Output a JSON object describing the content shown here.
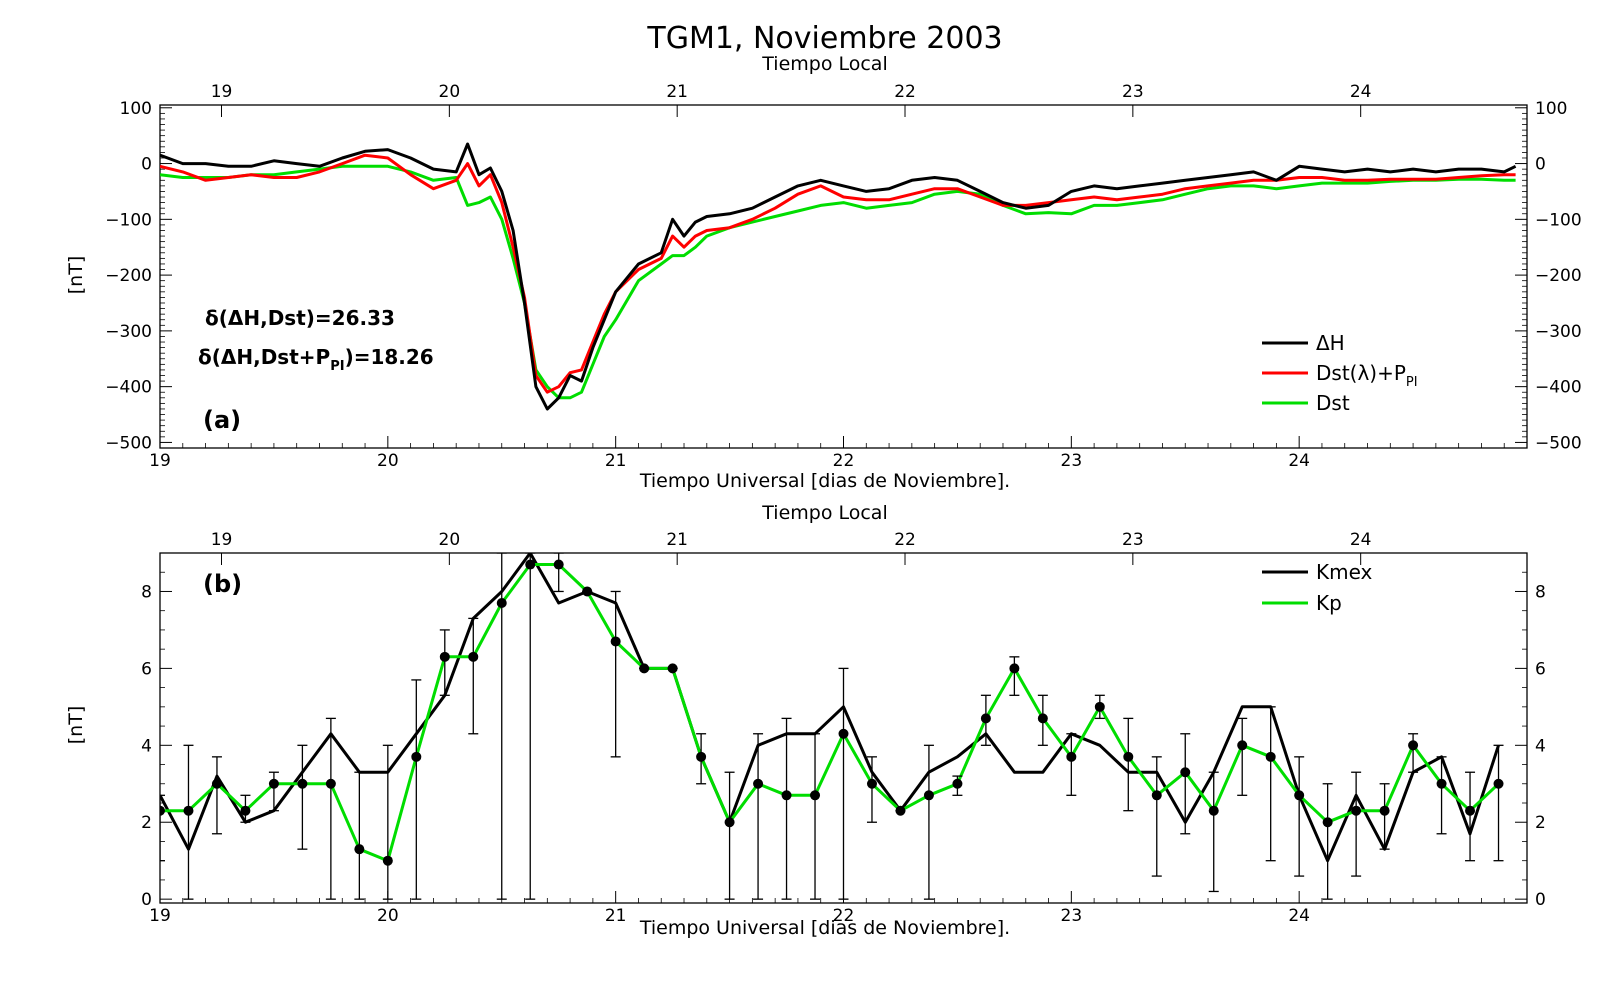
{
  "figure": {
    "title": "TGM1, Noviembre 2003"
  },
  "chart_data": [
    {
      "type": "line",
      "panel": "(a)",
      "top_axis_label": "Tiempo Local",
      "top_ticks": [
        "19",
        "20",
        "21",
        "22",
        "23",
        "24"
      ],
      "xlabel": "Tiempo Universal [dias de Noviembre].",
      "ylabel": "[nT]",
      "xlim": [
        19,
        25
      ],
      "ylim": [
        -510,
        105
      ],
      "x_ticks": [
        "19",
        "20",
        "21",
        "22",
        "23",
        "24"
      ],
      "y_ticks": [
        "100",
        "0",
        "−100",
        "−200",
        "−300",
        "−400",
        "−500"
      ],
      "annotations": {
        "line1": "δ(ΔH,Dst)=26.33",
        "line2_main": "δ(ΔH,Dst+P",
        "line2_sub": "PI",
        "line2_end": ")=18.26"
      },
      "legend": {
        "placement": "lower-right",
        "entries": {
          "dh": "ΔH",
          "dstl_main": "Dst(λ)+P",
          "dstl_sub": "PI",
          "dst": "Dst"
        }
      },
      "series": [
        {
          "name": "ΔH",
          "color": "#000000",
          "x": [
            19.0,
            19.1,
            19.2,
            19.3,
            19.4,
            19.5,
            19.6,
            19.7,
            19.8,
            19.9,
            20.0,
            20.1,
            20.2,
            20.3,
            20.35,
            20.4,
            20.45,
            20.5,
            20.55,
            20.6,
            20.65,
            20.7,
            20.75,
            20.8,
            20.85,
            20.9,
            20.95,
            21.0,
            21.1,
            21.2,
            21.25,
            21.3,
            21.35,
            21.4,
            21.5,
            21.6,
            21.7,
            21.8,
            21.9,
            22.0,
            22.1,
            22.2,
            22.3,
            22.4,
            22.5,
            22.6,
            22.7,
            22.8,
            22.9,
            23.0,
            23.1,
            23.2,
            23.3,
            23.4,
            23.5,
            23.6,
            23.7,
            23.8,
            23.9,
            24.0,
            24.1,
            24.2,
            24.3,
            24.4,
            24.5,
            24.6,
            24.7,
            24.8,
            24.9,
            24.95
          ],
          "y": [
            15,
            0,
            0,
            -5,
            -5,
            5,
            0,
            -5,
            10,
            22,
            25,
            10,
            -10,
            -15,
            35,
            -20,
            -8,
            -50,
            -120,
            -250,
            -400,
            -440,
            -420,
            -380,
            -390,
            -330,
            -280,
            -230,
            -180,
            -160,
            -100,
            -130,
            -105,
            -95,
            -90,
            -80,
            -60,
            -40,
            -30,
            -40,
            -50,
            -45,
            -30,
            -25,
            -30,
            -50,
            -70,
            -80,
            -75,
            -50,
            -40,
            -45,
            -40,
            -35,
            -30,
            -25,
            -20,
            -15,
            -30,
            -5,
            -10,
            -15,
            -10,
            -15,
            -10,
            -15,
            -10,
            -10,
            -15,
            -5
          ]
        },
        {
          "name": "Dst(λ)+PPI",
          "color": "#ff0000",
          "x": [
            19.0,
            19.1,
            19.2,
            19.3,
            19.4,
            19.5,
            19.6,
            19.7,
            19.8,
            19.9,
            20.0,
            20.1,
            20.2,
            20.3,
            20.35,
            20.4,
            20.45,
            20.5,
            20.55,
            20.6,
            20.65,
            20.7,
            20.75,
            20.8,
            20.85,
            20.9,
            20.95,
            21.0,
            21.1,
            21.2,
            21.25,
            21.3,
            21.35,
            21.4,
            21.5,
            21.6,
            21.7,
            21.8,
            21.9,
            22.0,
            22.1,
            22.2,
            22.3,
            22.4,
            22.5,
            22.6,
            22.7,
            22.8,
            22.9,
            23.0,
            23.1,
            23.2,
            23.3,
            23.4,
            23.5,
            23.6,
            23.7,
            23.8,
            23.9,
            24.0,
            24.1,
            24.2,
            24.3,
            24.4,
            24.5,
            24.6,
            24.7,
            24.8,
            24.9,
            24.95
          ],
          "y": [
            -5,
            -15,
            -30,
            -25,
            -20,
            -25,
            -25,
            -15,
            0,
            15,
            10,
            -20,
            -45,
            -30,
            0,
            -40,
            -20,
            -70,
            -150,
            -240,
            -380,
            -410,
            -400,
            -375,
            -370,
            -320,
            -270,
            -230,
            -190,
            -170,
            -130,
            -150,
            -130,
            -120,
            -115,
            -100,
            -80,
            -55,
            -40,
            -60,
            -65,
            -65,
            -55,
            -45,
            -45,
            -60,
            -75,
            -75,
            -70,
            -65,
            -60,
            -65,
            -60,
            -55,
            -45,
            -40,
            -35,
            -30,
            -30,
            -25,
            -25,
            -30,
            -30,
            -28,
            -28,
            -28,
            -25,
            -22,
            -20,
            -20
          ]
        },
        {
          "name": "Dst",
          "color": "#00dd00",
          "x": [
            19.0,
            19.1,
            19.2,
            19.3,
            19.4,
            19.5,
            19.6,
            19.7,
            19.8,
            19.9,
            20.0,
            20.1,
            20.2,
            20.3,
            20.35,
            20.4,
            20.45,
            20.5,
            20.55,
            20.6,
            20.65,
            20.7,
            20.75,
            20.8,
            20.85,
            20.9,
            20.95,
            21.0,
            21.1,
            21.2,
            21.25,
            21.3,
            21.35,
            21.4,
            21.5,
            21.6,
            21.7,
            21.8,
            21.9,
            22.0,
            22.1,
            22.2,
            22.3,
            22.4,
            22.5,
            22.6,
            22.7,
            22.8,
            22.9,
            23.0,
            23.1,
            23.2,
            23.3,
            23.4,
            23.5,
            23.6,
            23.7,
            23.8,
            23.9,
            24.0,
            24.1,
            24.2,
            24.3,
            24.4,
            24.5,
            24.6,
            24.7,
            24.8,
            24.9,
            24.95
          ],
          "y": [
            -20,
            -25,
            -25,
            -25,
            -20,
            -20,
            -15,
            -10,
            -5,
            -5,
            -5,
            -15,
            -30,
            -25,
            -75,
            -70,
            -60,
            -100,
            -170,
            -250,
            -370,
            -400,
            -420,
            -420,
            -410,
            -360,
            -310,
            -280,
            -210,
            -180,
            -165,
            -165,
            -150,
            -130,
            -115,
            -105,
            -95,
            -85,
            -75,
            -70,
            -80,
            -75,
            -70,
            -55,
            -50,
            -55,
            -75,
            -90,
            -88,
            -90,
            -75,
            -75,
            -70,
            -65,
            -55,
            -45,
            -40,
            -40,
            -45,
            -40,
            -35,
            -35,
            -35,
            -32,
            -30,
            -30,
            -28,
            -28,
            -30,
            -30
          ]
        }
      ]
    },
    {
      "type": "line",
      "panel": "(b)",
      "top_axis_label": "Tiempo Local",
      "top_ticks": [
        "19",
        "20",
        "21",
        "22",
        "23",
        "24"
      ],
      "xlabel": "Tiempo Universal [dias de Noviembre].",
      "ylabel": "[nT]",
      "xlim": [
        19,
        25
      ],
      "ylim": [
        -0.1,
        9
      ],
      "x_ticks": [
        "19",
        "20",
        "21",
        "22",
        "23",
        "24"
      ],
      "y_ticks": [
        "0",
        "2",
        "4",
        "6",
        "8"
      ],
      "legend": {
        "placement": "top-right",
        "entries": {
          "kmex": "Kmex",
          "kp": "Kp"
        }
      },
      "series": [
        {
          "name": "Kmex",
          "color": "#000000",
          "x": [
            19.0,
            19.125,
            19.25,
            19.375,
            19.5,
            19.625,
            19.75,
            19.875,
            20.0,
            20.125,
            20.25,
            20.375,
            20.5,
            20.625,
            20.75,
            20.875,
            21.0,
            21.125,
            21.25,
            21.375,
            21.5,
            21.625,
            21.75,
            21.875,
            22.0,
            22.125,
            22.25,
            22.375,
            22.5,
            22.625,
            22.75,
            22.875,
            23.0,
            23.125,
            23.25,
            23.375,
            23.5,
            23.625,
            23.75,
            23.875,
            24.0,
            24.125,
            24.25,
            24.375,
            24.5,
            24.625,
            24.75,
            24.875
          ],
          "y": [
            2.7,
            1.3,
            3.2,
            2.0,
            2.3,
            3.3,
            4.3,
            3.3,
            3.3,
            4.3,
            5.3,
            7.3,
            8.0,
            9.0,
            7.7,
            8.0,
            7.7,
            6.0,
            6.0,
            3.7,
            2.0,
            4.0,
            4.3,
            4.3,
            5.0,
            3.3,
            2.3,
            3.3,
            3.7,
            4.3,
            3.3,
            3.3,
            4.3,
            4.0,
            3.3,
            3.3,
            2.0,
            3.3,
            5.0,
            5.0,
            2.7,
            1.0,
            2.7,
            1.3,
            3.3,
            3.7,
            1.7,
            4.0
          ]
        },
        {
          "name": "Kp",
          "color": "#00dd00",
          "x": [
            19.0,
            19.125,
            19.25,
            19.375,
            19.5,
            19.625,
            19.75,
            19.875,
            20.0,
            20.125,
            20.25,
            20.375,
            20.5,
            20.625,
            20.75,
            20.875,
            21.0,
            21.125,
            21.25,
            21.375,
            21.5,
            21.625,
            21.75,
            21.875,
            22.0,
            22.125,
            22.25,
            22.375,
            22.5,
            22.625,
            22.75,
            22.875,
            23.0,
            23.125,
            23.25,
            23.375,
            23.5,
            23.625,
            23.75,
            23.875,
            24.0,
            24.125,
            24.25,
            24.375,
            24.5,
            24.625,
            24.75,
            24.875
          ],
          "y": [
            2.3,
            2.3,
            3.0,
            2.3,
            3.0,
            3.0,
            3.0,
            1.3,
            1.0,
            3.7,
            6.3,
            6.3,
            7.7,
            8.7,
            8.7,
            8.0,
            6.7,
            6.0,
            6.0,
            3.7,
            2.0,
            3.0,
            2.7,
            2.7,
            4.3,
            3.0,
            2.3,
            2.7,
            3.0,
            4.7,
            6.0,
            4.7,
            3.7,
            5.0,
            3.7,
            2.7,
            3.3,
            2.3,
            4.0,
            3.7,
            2.7,
            2.0,
            2.3,
            2.3,
            4.0,
            3.0,
            2.3,
            3.0
          ],
          "error_low": [
            1.0,
            0.0,
            1.7,
            2.0,
            2.3,
            1.3,
            0.0,
            0.0,
            0.0,
            0.0,
            5.3,
            4.3,
            0.0,
            0.0,
            8.0,
            8.0,
            3.7,
            6.0,
            6.0,
            3.0,
            0.0,
            0.0,
            0.0,
            0.0,
            0.0,
            2.0,
            2.3,
            0.0,
            2.7,
            4.0,
            5.3,
            4.0,
            2.7,
            4.7,
            2.3,
            0.6,
            1.7,
            0.2,
            2.7,
            1.0,
            0.6,
            0.0,
            0.6,
            1.3,
            3.3,
            1.7,
            1.0,
            1.0
          ],
          "error_high": [
            2.7,
            4.0,
            3.7,
            2.7,
            3.3,
            4.0,
            4.7,
            3.3,
            4.0,
            5.7,
            7.0,
            7.3,
            9.0,
            9.0,
            9.0,
            8.0,
            8.0,
            6.0,
            6.0,
            4.3,
            3.3,
            4.3,
            4.7,
            4.3,
            6.0,
            3.7,
            2.3,
            4.0,
            3.2,
            5.3,
            6.3,
            5.3,
            4.3,
            5.3,
            4.7,
            3.7,
            4.3,
            3.3,
            4.7,
            5.0,
            3.7,
            3.0,
            3.3,
            3.0,
            4.3,
            3.7,
            3.3,
            4.0
          ]
        }
      ]
    }
  ]
}
